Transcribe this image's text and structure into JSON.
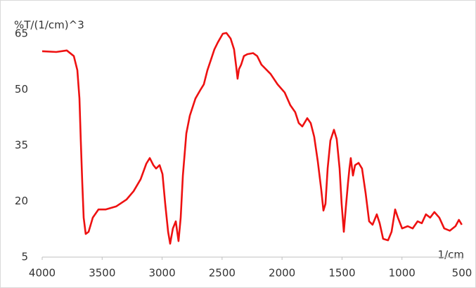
{
  "chart_data": {
    "type": "line",
    "y_label": "%T/(1/cm)^3",
    "x_label": "1/cm",
    "xlim": [
      4000,
      500
    ],
    "xticks": [
      4000,
      3500,
      3000,
      2500,
      2000,
      1500,
      1000,
      500
    ],
    "ylim": [
      5,
      65
    ],
    "yticks": [
      5,
      20,
      35,
      50,
      65
    ],
    "series": [
      {
        "color": "#ee1111",
        "x": [
          4000,
          3883,
          3795,
          3736,
          3707,
          3689,
          3678,
          3666,
          3654,
          3637,
          3613,
          3578,
          3531,
          3472,
          3384,
          3296,
          3238,
          3179,
          3132,
          3103,
          3073,
          3050,
          3021,
          2997,
          2974,
          2950,
          2933,
          2910,
          2886,
          2863,
          2845,
          2827,
          2798,
          2769,
          2722,
          2681,
          2652,
          2622,
          2593,
          2564,
          2535,
          2494,
          2464,
          2429,
          2400,
          2382,
          2371,
          2359,
          2341,
          2318,
          2289,
          2242,
          2207,
          2172,
          2096,
          2037,
          1978,
          1931,
          1890,
          1861,
          1831,
          1790,
          1761,
          1732,
          1702,
          1673,
          1655,
          1638,
          1620,
          1597,
          1567,
          1544,
          1520,
          1503,
          1485,
          1468,
          1450,
          1438,
          1427,
          1409,
          1391,
          1362,
          1333,
          1303,
          1274,
          1245,
          1210,
          1186,
          1157,
          1116,
          1087,
          1057,
          1034,
          999,
          952,
          911,
          870,
          835,
          800,
          765,
          730,
          689,
          648,
          601,
          554,
          525,
          501
        ],
        "values": [
          60.3,
          60.1,
          60.5,
          59,
          55.2,
          47.6,
          36.3,
          25,
          15.6,
          11.2,
          11.8,
          15.6,
          17.8,
          17.8,
          18.6,
          20.5,
          22.7,
          25.9,
          30.1,
          31.6,
          29.7,
          28.8,
          29.7,
          27.3,
          19.3,
          11.8,
          8.6,
          12.7,
          14.6,
          9.3,
          15.6,
          26.9,
          38.2,
          43,
          47.6,
          49.9,
          51.4,
          55.2,
          58,
          60.8,
          62.7,
          65,
          65.2,
          63.7,
          60.8,
          56.1,
          52.9,
          55.5,
          56.7,
          59,
          59.5,
          59.8,
          59,
          56.7,
          54.2,
          51.4,
          49.2,
          45.8,
          43.9,
          41,
          40.1,
          42.3,
          41,
          37.3,
          30.7,
          23.1,
          17.5,
          19.3,
          28.8,
          36.3,
          39.2,
          36.7,
          28.8,
          19.3,
          11.8,
          18.4,
          25,
          28.8,
          31.6,
          26.9,
          29.7,
          30.3,
          28.8,
          22.2,
          14.6,
          13.7,
          16.5,
          14.1,
          9.9,
          9.5,
          11.8,
          17.8,
          15.6,
          12.7,
          13.3,
          12.7,
          14.6,
          14.1,
          16.5,
          15.6,
          17.1,
          15.6,
          12.7,
          12.1,
          13.3,
          15,
          13.7
        ]
      }
    ]
  }
}
